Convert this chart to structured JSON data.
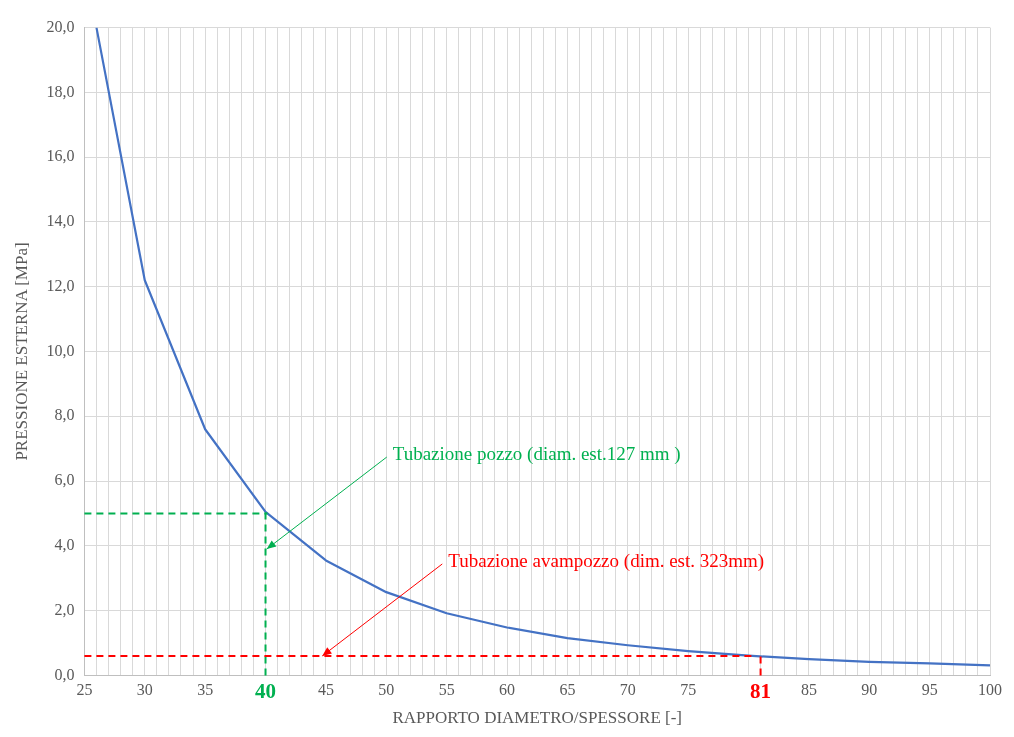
{
  "chart_data": {
    "type": "line",
    "xlabel": "RAPPORTO DIAMETRO/SPESSORE [-]",
    "ylabel": "PRESSIONE ESTERNA [MPa]",
    "x": [
      26,
      30,
      35,
      40,
      45,
      50,
      55,
      60,
      65,
      70,
      75,
      80,
      85,
      90,
      95,
      100
    ],
    "series": [
      {
        "color": "#4472c4",
        "values": [
          20.0,
          12.2,
          7.6,
          5.05,
          3.55,
          2.57,
          1.92,
          1.48,
          1.15,
          0.93,
          0.75,
          0.61,
          0.5,
          0.42,
          0.37,
          0.31
        ]
      }
    ],
    "xlim": [
      25,
      100
    ],
    "xticks": [
      25,
      {
        "value": 26,
        "label": null
      },
      {
        "value": 27,
        "label": null
      },
      {
        "value": 28,
        "label": null
      },
      {
        "value": 29,
        "label": null
      },
      30,
      {
        "value": 31,
        "label": null
      },
      {
        "value": 32,
        "label": null
      },
      {
        "value": 33,
        "label": null
      },
      {
        "value": 34,
        "label": null
      },
      35,
      {
        "value": 36,
        "label": null
      },
      {
        "value": 37,
        "label": null
      },
      {
        "value": 38,
        "label": null
      },
      {
        "value": 39,
        "label": null
      },
      {
        "value": 40,
        "label": null
      },
      {
        "value": 41,
        "label": null
      },
      {
        "value": 42,
        "label": null
      },
      {
        "value": 43,
        "label": null
      },
      {
        "value": 44,
        "label": null
      },
      45,
      {
        "value": 46,
        "label": null
      },
      {
        "value": 47,
        "label": null
      },
      {
        "value": 48,
        "label": null
      },
      {
        "value": 49,
        "label": null
      },
      50,
      {
        "value": 51,
        "label": null
      },
      {
        "value": 52,
        "label": null
      },
      {
        "value": 53,
        "label": null
      },
      {
        "value": 54,
        "label": null
      },
      55,
      {
        "value": 56,
        "label": null
      },
      {
        "value": 57,
        "label": null
      },
      {
        "value": 58,
        "label": null
      },
      {
        "value": 59,
        "label": null
      },
      60,
      {
        "value": 61,
        "label": null
      },
      {
        "value": 62,
        "label": null
      },
      {
        "value": 63,
        "label": null
      },
      {
        "value": 64,
        "label": null
      },
      65,
      {
        "value": 66,
        "label": null
      },
      {
        "value": 67,
        "label": null
      },
      {
        "value": 68,
        "label": null
      },
      {
        "value": 69,
        "label": null
      },
      70,
      {
        "value": 71,
        "label": null
      },
      {
        "value": 72,
        "label": null
      },
      {
        "value": 73,
        "label": null
      },
      {
        "value": 74,
        "label": null
      },
      75,
      {
        "value": 76,
        "label": null
      },
      {
        "value": 77,
        "label": null
      },
      {
        "value": 78,
        "label": null
      },
      {
        "value": 79,
        "label": null
      },
      {
        "value": 80,
        "label": null
      },
      {
        "value": 81,
        "label": null
      },
      {
        "value": 82,
        "label": null
      },
      {
        "value": 83,
        "label": null
      },
      {
        "value": 84,
        "label": null
      },
      85,
      {
        "value": 86,
        "label": null
      },
      {
        "value": 87,
        "label": null
      },
      {
        "value": 88,
        "label": null
      },
      {
        "value": 89,
        "label": null
      },
      90,
      {
        "value": 91,
        "label": null
      },
      {
        "value": 92,
        "label": null
      },
      {
        "value": 93,
        "label": null
      },
      {
        "value": 94,
        "label": null
      },
      95,
      {
        "value": 96,
        "label": null
      },
      {
        "value": 97,
        "label": null
      },
      {
        "value": 98,
        "label": null
      },
      {
        "value": 99,
        "label": null
      },
      100
    ],
    "ylim": [
      0,
      20
    ],
    "yticks": [
      {
        "value": 0,
        "label": "0,0"
      },
      {
        "value": 2,
        "label": "2,0"
      },
      {
        "value": 4,
        "label": "4,0"
      },
      {
        "value": 6,
        "label": "6,0"
      },
      {
        "value": 8,
        "label": "8,0"
      },
      {
        "value": 10,
        "label": "10,0"
      },
      {
        "value": 12,
        "label": "12,0"
      },
      {
        "value": 14,
        "label": "14,0"
      },
      {
        "value": 16,
        "label": "16,0"
      },
      {
        "value": 18,
        "label": "18,0"
      },
      {
        "value": 20,
        "label": "20,0"
      }
    ],
    "grid": true,
    "marker": "none",
    "line_style": "solid",
    "legend": false,
    "ref_lines": [
      {
        "axis": "x",
        "value": 40,
        "label": "40",
        "color": "#00b050",
        "line_style": "dashed"
      },
      {
        "axis": "y",
        "value": 5.0,
        "color": "#00b050",
        "line_style": "dashed"
      },
      {
        "axis": "x",
        "value": 81,
        "label": "81",
        "color": "#ff0000",
        "line_style": "dashed"
      },
      {
        "axis": "y",
        "value": 0.6,
        "color": "#ff0000",
        "line_style": "dashed"
      }
    ],
    "annotations": [
      {
        "text": "Tubazione pozzo (diam. est.127 mm )",
        "x": 40.1,
        "y": 3.9
      },
      {
        "text": "Tubazione avampozzo (dim. est. 323mm)",
        "x": 44.7,
        "y": 0.6
      }
    ]
  }
}
